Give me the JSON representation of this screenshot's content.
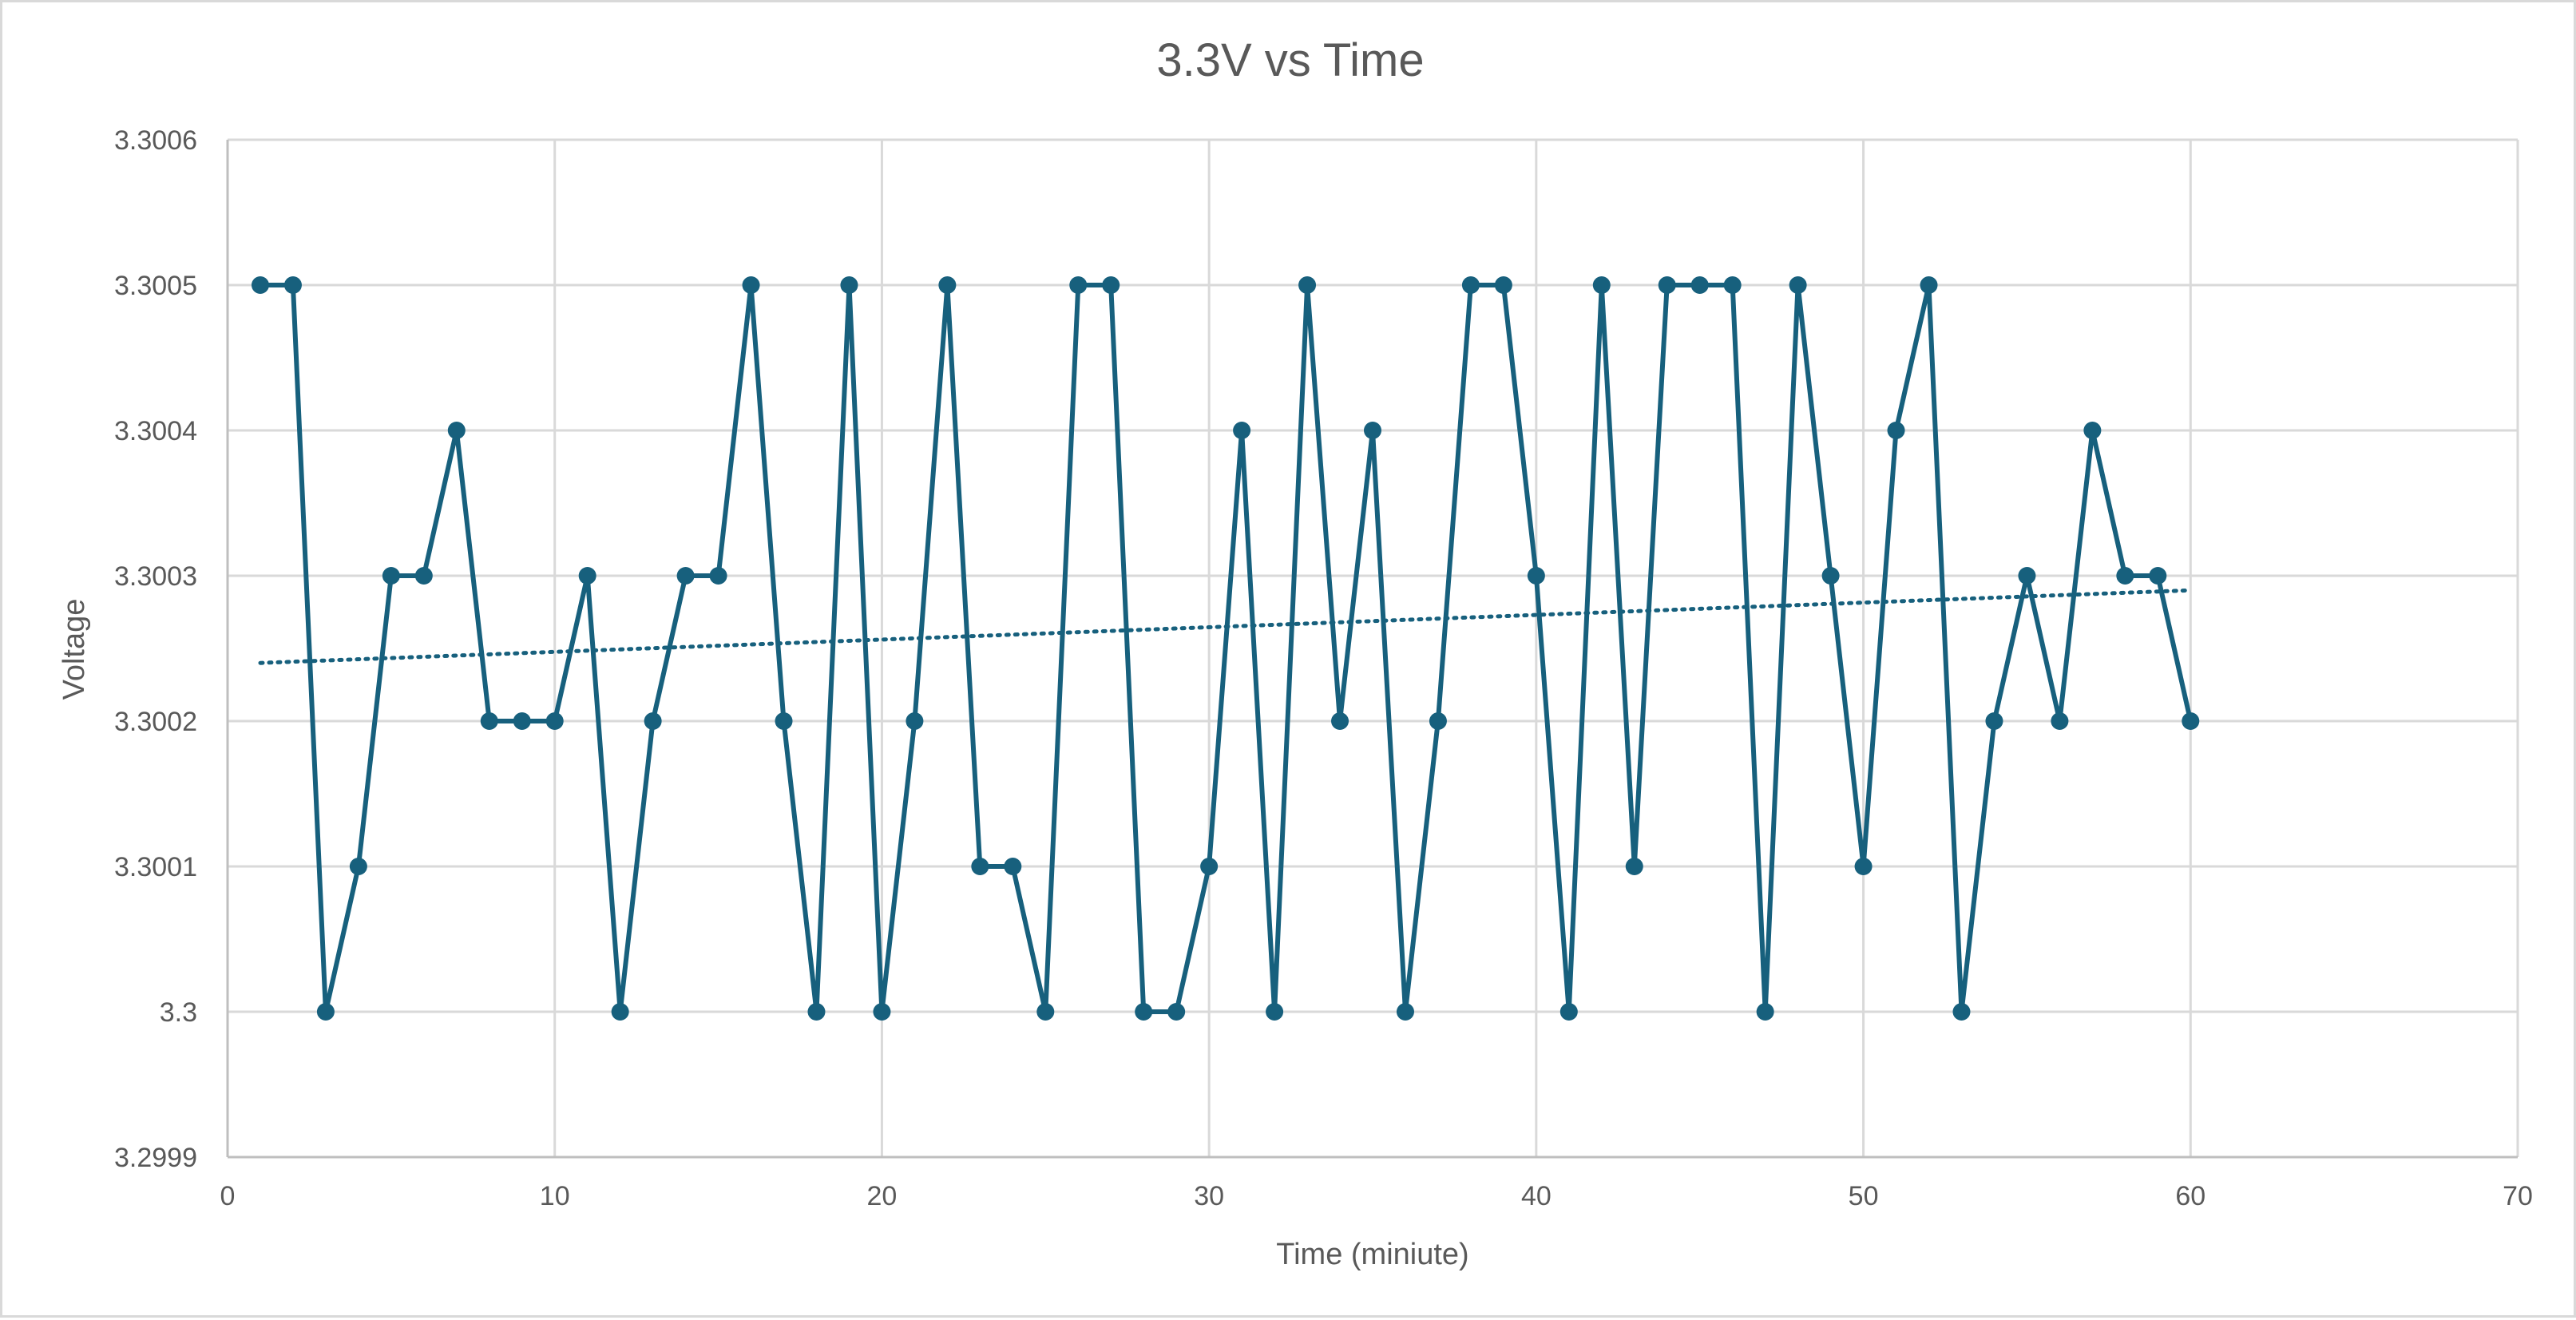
{
  "chart_data": {
    "type": "line",
    "title": "3.3V vs Time",
    "xlabel": "Time (miniute)",
    "ylabel": "Voltage",
    "xlim": [
      0,
      70
    ],
    "ylim": [
      3.2999,
      3.3006
    ],
    "x_ticks": [
      "0",
      "10",
      "20",
      "30",
      "40",
      "50",
      "60",
      "70"
    ],
    "y_ticks": [
      "3.2999",
      "3.3",
      "3.3001",
      "3.3002",
      "3.3003",
      "3.3004",
      "3.3005",
      "3.3006"
    ],
    "grid": true,
    "legend": "none",
    "color": "#17607d",
    "trendline": {
      "type": "linear",
      "style": "dotted",
      "start": [
        1,
        3.30024
      ],
      "end": [
        60,
        3.30029
      ]
    },
    "series": [
      {
        "x": [
          1,
          2,
          3,
          4,
          5,
          6,
          7,
          8,
          9,
          10,
          11,
          12,
          13,
          14,
          15,
          16,
          17,
          18,
          19,
          20,
          21,
          22,
          23,
          24,
          25,
          26,
          27,
          28,
          29,
          30,
          31,
          32,
          33,
          34,
          35,
          36,
          37,
          38,
          39,
          40,
          41,
          42,
          43,
          44,
          45,
          46,
          47,
          48,
          49,
          50,
          51,
          52,
          53,
          54,
          55,
          56,
          57,
          58,
          59,
          60
        ],
        "values": [
          3.3005,
          3.3005,
          3.3,
          3.3001,
          3.3003,
          3.3003,
          3.3004,
          3.3002,
          3.3002,
          3.3002,
          3.3003,
          3.3,
          3.3002,
          3.3003,
          3.3003,
          3.3005,
          3.3002,
          3.3,
          3.3005,
          3.3,
          3.3002,
          3.3005,
          3.3001,
          3.3001,
          3.3,
          3.3005,
          3.3005,
          3.3,
          3.3,
          3.3001,
          3.3004,
          3.3,
          3.3005,
          3.3002,
          3.3004,
          3.3,
          3.3002,
          3.3005,
          3.3005,
          3.3003,
          3.3,
          3.3005,
          3.3001,
          3.3005,
          3.3005,
          3.3005,
          3.3,
          3.3005,
          3.3003,
          3.3001,
          3.3004,
          3.3005,
          3.3,
          3.3002,
          3.3003,
          3.3002,
          3.3004,
          3.3003,
          3.3003,
          3.3002
        ]
      }
    ]
  }
}
